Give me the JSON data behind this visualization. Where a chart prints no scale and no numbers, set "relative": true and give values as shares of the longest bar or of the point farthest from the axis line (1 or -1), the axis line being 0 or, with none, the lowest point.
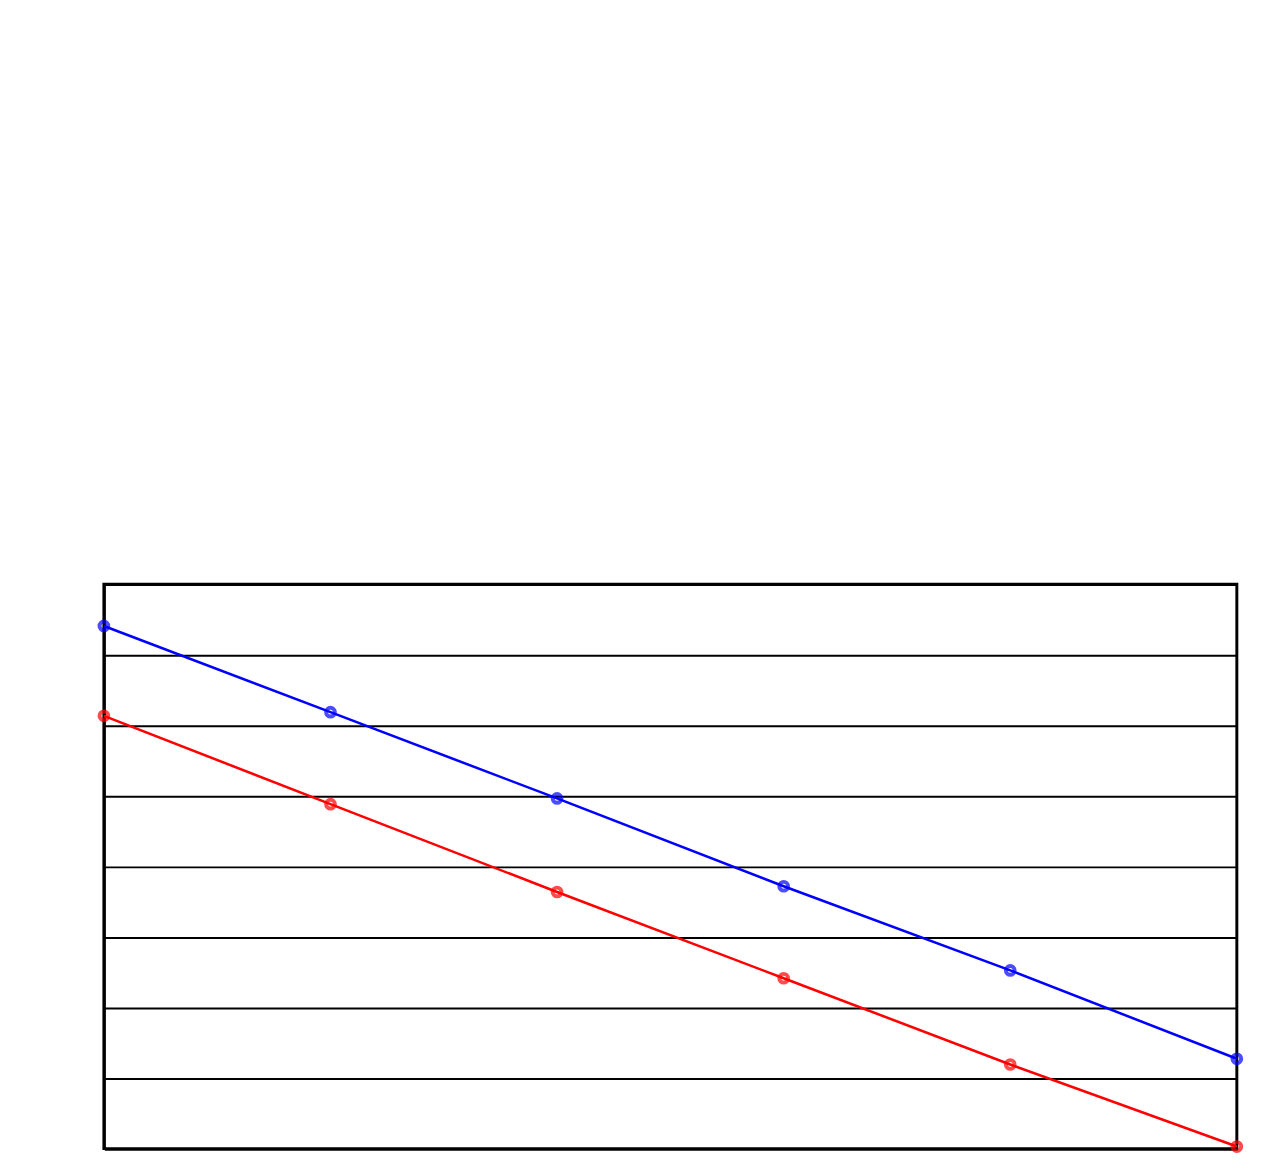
{
  "chart_data": {
    "type": "line",
    "relative": true,
    "categories": [
      null,
      null,
      null,
      null,
      null,
      null
    ],
    "series": [
      {
        "color": "#0000ff",
        "values": [
          1,
          0.835,
          0.67,
          0.502,
          0.341,
          0.172
        ]
      },
      {
        "color": "#ff0000",
        "values": [
          0.828,
          0.659,
          0.491,
          0.326,
          0.161,
          0.004
        ]
      }
    ],
    "grid": "y",
    "marker": "circle",
    "line_style": "solid"
  }
}
